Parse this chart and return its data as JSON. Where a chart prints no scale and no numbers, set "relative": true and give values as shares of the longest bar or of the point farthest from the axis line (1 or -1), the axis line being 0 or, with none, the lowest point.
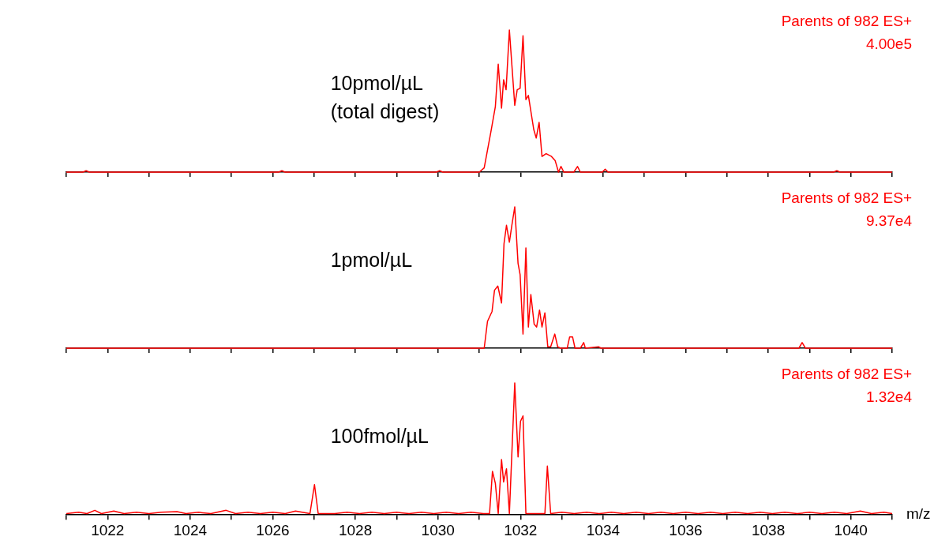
{
  "chart_data": [
    {
      "type": "line",
      "title": "10pmol/µL\n(total digest)",
      "annotations": [
        "Parents of 982 ES+",
        "4.00e5"
      ],
      "relative": true,
      "tick_labels": false,
      "color": "#ff0000",
      "xlim": [
        1021,
        1041
      ],
      "xticks": [
        {
          "value": 1021,
          "label": null
        },
        1022,
        {
          "value": 1023,
          "label": null
        },
        1024,
        {
          "value": 1025,
          "label": null
        },
        1026,
        {
          "value": 1027,
          "label": null
        },
        1028,
        {
          "value": 1029,
          "label": null
        },
        1030,
        {
          "value": 1031,
          "label": null
        },
        1032,
        {
          "value": 1033,
          "label": null
        },
        1034,
        {
          "value": 1035,
          "label": null
        },
        1036,
        {
          "value": 1037,
          "label": null
        },
        1038,
        {
          "value": 1039,
          "label": null
        },
        1040,
        {
          "value": 1041,
          "label": null
        }
      ],
      "x": [
        1021,
        1021.4,
        1021.48,
        1021.56,
        1026.14,
        1026.22,
        1026.3,
        1029.96,
        1030.04,
        1030.12,
        1031.0,
        1031.12,
        1031.28,
        1031.39,
        1031.46,
        1031.54,
        1031.59,
        1031.65,
        1031.73,
        1031.86,
        1031.92,
        1031.99,
        1032.06,
        1032.13,
        1032.19,
        1032.32,
        1032.38,
        1032.45,
        1032.52,
        1032.62,
        1032.75,
        1032.84,
        1032.92,
        1032.98,
        1033.05,
        1033.29,
        1033.38,
        1033.45,
        1033.98,
        1034.05,
        1034.12,
        1039.58,
        1039.66,
        1039.74,
        1041
      ],
      "values": [
        0,
        0,
        0.01,
        0,
        0,
        0.01,
        0,
        0,
        0.01,
        0,
        0,
        0.03,
        0.28,
        0.46,
        0.76,
        0.45,
        0.65,
        0.58,
        1.0,
        0.47,
        0.58,
        0.59,
        0.96,
        0.51,
        0.54,
        0.3,
        0.24,
        0.35,
        0.11,
        0.13,
        0.11,
        0.08,
        0,
        0.04,
        0,
        0,
        0.04,
        0,
        0,
        0.02,
        0,
        0,
        0.01,
        0,
        0
      ]
    },
    {
      "type": "line",
      "title": "1pmol/µL",
      "annotations": [
        "Parents of 982 ES+",
        "9.37e4"
      ],
      "relative": true,
      "tick_labels": false,
      "color": "#ff0000",
      "xlim": [
        1021,
        1041
      ],
      "xticks": [
        {
          "value": 1021,
          "label": null
        },
        1022,
        {
          "value": 1023,
          "label": null
        },
        1024,
        {
          "value": 1025,
          "label": null
        },
        1026,
        {
          "value": 1027,
          "label": null
        },
        1028,
        {
          "value": 1029,
          "label": null
        },
        1030,
        {
          "value": 1031,
          "label": null
        },
        1032,
        {
          "value": 1033,
          "label": null
        },
        1034,
        {
          "value": 1035,
          "label": null
        },
        1036,
        {
          "value": 1037,
          "label": null
        },
        1038,
        {
          "value": 1039,
          "label": null
        },
        1040,
        {
          "value": 1041,
          "label": null
        }
      ],
      "x": [
        1021,
        1031.0,
        1031.12,
        1031.2,
        1031.31,
        1031.37,
        1031.45,
        1031.54,
        1031.6,
        1031.66,
        1031.73,
        1031.79,
        1031.86,
        1031.94,
        1031.99,
        1032.06,
        1032.13,
        1032.19,
        1032.25,
        1032.33,
        1032.39,
        1032.46,
        1032.52,
        1032.59,
        1032.66,
        1032.73,
        1032.83,
        1032.9,
        1032.97,
        1033.13,
        1033.19,
        1033.26,
        1033.32,
        1033.45,
        1033.53,
        1033.57,
        1033.89,
        1033.95,
        1038.74,
        1038.82,
        1038.9,
        1041
      ],
      "values": [
        0,
        0,
        0,
        0.19,
        0.26,
        0.41,
        0.44,
        0.32,
        0.74,
        0.87,
        0.75,
        0.87,
        1.0,
        0.6,
        0.52,
        0.1,
        0.71,
        0.15,
        0.38,
        0.17,
        0.15,
        0.27,
        0.15,
        0.25,
        0.01,
        0.01,
        0.1,
        0.01,
        0,
        0,
        0.08,
        0.08,
        0,
        0,
        0.04,
        0,
        0.01,
        0,
        0,
        0.04,
        0,
        0
      ]
    },
    {
      "type": "line",
      "title": "100fmol/µL",
      "annotations": [
        "Parents of 982 ES+",
        "1.32e4"
      ],
      "relative": true,
      "tick_labels": "x",
      "xlabel": "m/z",
      "color": "#ff0000",
      "xlim": [
        1021,
        1041
      ],
      "xticks": [
        {
          "value": 1021,
          "label": null
        },
        1022,
        {
          "value": 1023,
          "label": null
        },
        1024,
        {
          "value": 1025,
          "label": null
        },
        1026,
        {
          "value": 1027,
          "label": null
        },
        1028,
        {
          "value": 1029,
          "label": null
        },
        1030,
        {
          "value": 1031,
          "label": null
        },
        1032,
        {
          "value": 1033,
          "label": null
        },
        1034,
        {
          "value": 1035,
          "label": null
        },
        1036,
        {
          "value": 1037,
          "label": null
        },
        1038,
        {
          "value": 1039,
          "label": null
        },
        1040,
        {
          "value": 1041,
          "label": null
        }
      ],
      "x": [
        1021.0,
        1021.3,
        1021.5,
        1021.69,
        1021.85,
        1022.15,
        1022.4,
        1022.7,
        1023.0,
        1023.3,
        1023.68,
        1023.9,
        1024.2,
        1024.5,
        1024.87,
        1025.1,
        1025.4,
        1025.7,
        1026.0,
        1026.3,
        1026.55,
        1026.9,
        1027.01,
        1027.1,
        1027.5,
        1027.8,
        1028.1,
        1028.4,
        1028.7,
        1029.0,
        1029.3,
        1029.6,
        1029.9,
        1030.2,
        1030.5,
        1030.8,
        1031.1,
        1031.25,
        1031.32,
        1031.39,
        1031.46,
        1031.54,
        1031.59,
        1031.66,
        1031.73,
        1031.86,
        1031.94,
        1032.0,
        1032.06,
        1032.13,
        1032.27,
        1032.4,
        1032.59,
        1032.65,
        1032.73,
        1033.0,
        1033.3,
        1033.6,
        1033.9,
        1034.2,
        1034.5,
        1034.8,
        1035.1,
        1035.4,
        1035.7,
        1036.0,
        1036.3,
        1036.6,
        1036.9,
        1037.2,
        1037.5,
        1037.8,
        1038.1,
        1038.4,
        1038.7,
        1039.0,
        1039.3,
        1039.6,
        1039.9,
        1040.23,
        1040.5,
        1040.8,
        1041.0
      ],
      "values": [
        0.01,
        0.02,
        0.01,
        0.035,
        0.01,
        0.03,
        0.01,
        0.02,
        0.01,
        0.02,
        0.025,
        0.01,
        0.02,
        0.01,
        0.035,
        0.01,
        0.02,
        0.01,
        0.02,
        0.01,
        0.03,
        0.01,
        0.23,
        0.01,
        0.01,
        0.02,
        0.01,
        0.02,
        0.01,
        0.02,
        0.01,
        0.02,
        0.01,
        0.02,
        0.01,
        0.02,
        0.01,
        0.01,
        0.33,
        0.24,
        0.01,
        0.42,
        0.25,
        0.35,
        0.01,
        1.0,
        0.44,
        0.71,
        0.75,
        0.01,
        0.01,
        0.01,
        0.01,
        0.37,
        0.01,
        0.02,
        0.01,
        0.02,
        0.01,
        0.02,
        0.01,
        0.02,
        0.01,
        0.02,
        0.01,
        0.02,
        0.01,
        0.02,
        0.01,
        0.02,
        0.01,
        0.02,
        0.01,
        0.02,
        0.01,
        0.02,
        0.01,
        0.02,
        0.01,
        0.03,
        0.01,
        0.02,
        0.01
      ]
    }
  ]
}
